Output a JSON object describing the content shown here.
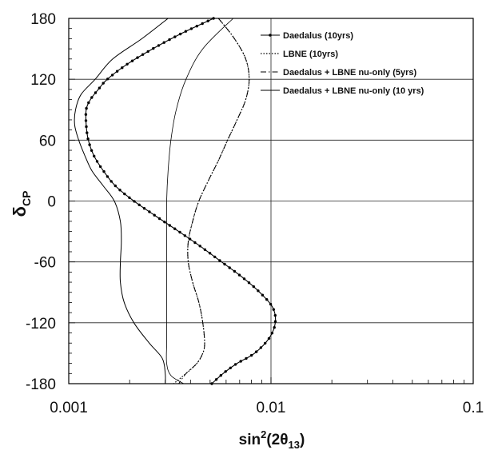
{
  "chart_data": {
    "type": "line",
    "x_scale": "log",
    "xlim": [
      0.001,
      0.1
    ],
    "ylim": [
      -180,
      180
    ],
    "x_ticks": [
      0.001,
      0.01,
      0.1
    ],
    "x_tick_labels": [
      "0.001",
      "0.01",
      "0.1"
    ],
    "y_ticks": [
      -180,
      -120,
      -60,
      0,
      60,
      120,
      180
    ],
    "y_tick_labels": [
      "-180",
      "-120",
      "-60",
      "0",
      "60",
      "120",
      "180"
    ],
    "xlabel": {
      "main": "sin",
      "sup": "2",
      "open": "(2θ",
      "sub": "13",
      "close": ")"
    },
    "ylabel": {
      "main": "δ",
      "sub": "CP"
    },
    "grid": "horizontal at y ticks; vertical at x ticks",
    "legend_position": "top-right",
    "series": [
      {
        "name": "Daedalus (10yrs)",
        "style": "solid-with-dots",
        "color": "#000000",
        "x": [
          0.0052,
          0.0036,
          0.0026,
          0.00195,
          0.00155,
          0.0014,
          0.00128,
          0.00122,
          0.00122,
          0.00125,
          0.00133,
          0.00148,
          0.0017,
          0.0021,
          0.0027,
          0.0035,
          0.0045,
          0.0057,
          0.0072,
          0.0088,
          0.0102,
          0.0105,
          0.0098,
          0.0083,
          0.0068,
          0.0058,
          0.0051
        ],
        "y": [
          180,
          165,
          150,
          135,
          120,
          110,
          100,
          90,
          75,
          60,
          45,
          30,
          15,
          0,
          -15,
          -30,
          -45,
          -60,
          -75,
          -90,
          -105,
          -120,
          -135,
          -150,
          -160,
          -170,
          -180
        ]
      },
      {
        "name": "LBNE (10yrs)",
        "style": "dotted",
        "color": "#000000",
        "x": [
          0.0055,
          0.0066,
          0.0075,
          0.0078,
          0.0075,
          0.0068,
          0.0061,
          0.0055,
          0.0049,
          0.0044,
          0.0041,
          0.0039,
          0.0039,
          0.0041,
          0.0044,
          0.0046,
          0.0047,
          0.0046,
          0.0043,
          0.0038,
          0.0033
        ],
        "y": [
          180,
          160,
          140,
          120,
          100,
          80,
          60,
          40,
          20,
          0,
          -20,
          -40,
          -60,
          -80,
          -100,
          -120,
          -140,
          -150,
          -160,
          -170,
          -180
        ]
      },
      {
        "name": "Daedalus + LBNE nu-only (5yrs)",
        "style": "dash-dot",
        "color": "#000000",
        "x": [
          0.0055,
          0.0066,
          0.0075,
          0.0078,
          0.0075,
          0.0068,
          0.0061,
          0.0055,
          0.0049,
          0.0044,
          0.0041,
          0.0039,
          0.0039,
          0.0041,
          0.0044,
          0.0046,
          0.0047,
          0.0046,
          0.0043,
          0.0038,
          0.0035
        ],
        "y": [
          180,
          160,
          140,
          120,
          100,
          80,
          60,
          40,
          20,
          0,
          -20,
          -40,
          -60,
          -80,
          -100,
          -120,
          -140,
          -150,
          -160,
          -170,
          -180
        ]
      },
      {
        "name": "Daedalus + LBNE nu-only (10 yrs)",
        "style": "solid",
        "color": "#000000",
        "x": [
          0.0031,
          0.0023,
          0.00165,
          0.00135,
          0.00115,
          0.00108,
          0.00107,
          0.00112,
          0.0012,
          0.0013,
          0.00148,
          0.00168,
          0.0018,
          0.00182,
          0.0018,
          0.0018,
          0.00188,
          0.0021,
          0.0025,
          0.0029,
          0.003,
          0.003
        ],
        "y": [
          180,
          160,
          140,
          120,
          105,
          90,
          75,
          60,
          45,
          30,
          15,
          0,
          -20,
          -40,
          -60,
          -80,
          -100,
          -120,
          -140,
          -155,
          -170,
          -180
        ]
      },
      {
        "name": "",
        "style": "solid-thin",
        "color": "#000000",
        "x": [
          0.0065,
          0.0046,
          0.0038,
          0.0034,
          0.0032,
          0.0031,
          0.00305,
          0.00305,
          0.00305,
          0.00305,
          0.00305,
          0.00305,
          0.00305,
          0.0032,
          0.0037
        ],
        "y": [
          180,
          150,
          120,
          90,
          60,
          30,
          0,
          -30,
          -60,
          -90,
          -120,
          -140,
          -160,
          -172,
          -180
        ]
      }
    ]
  }
}
